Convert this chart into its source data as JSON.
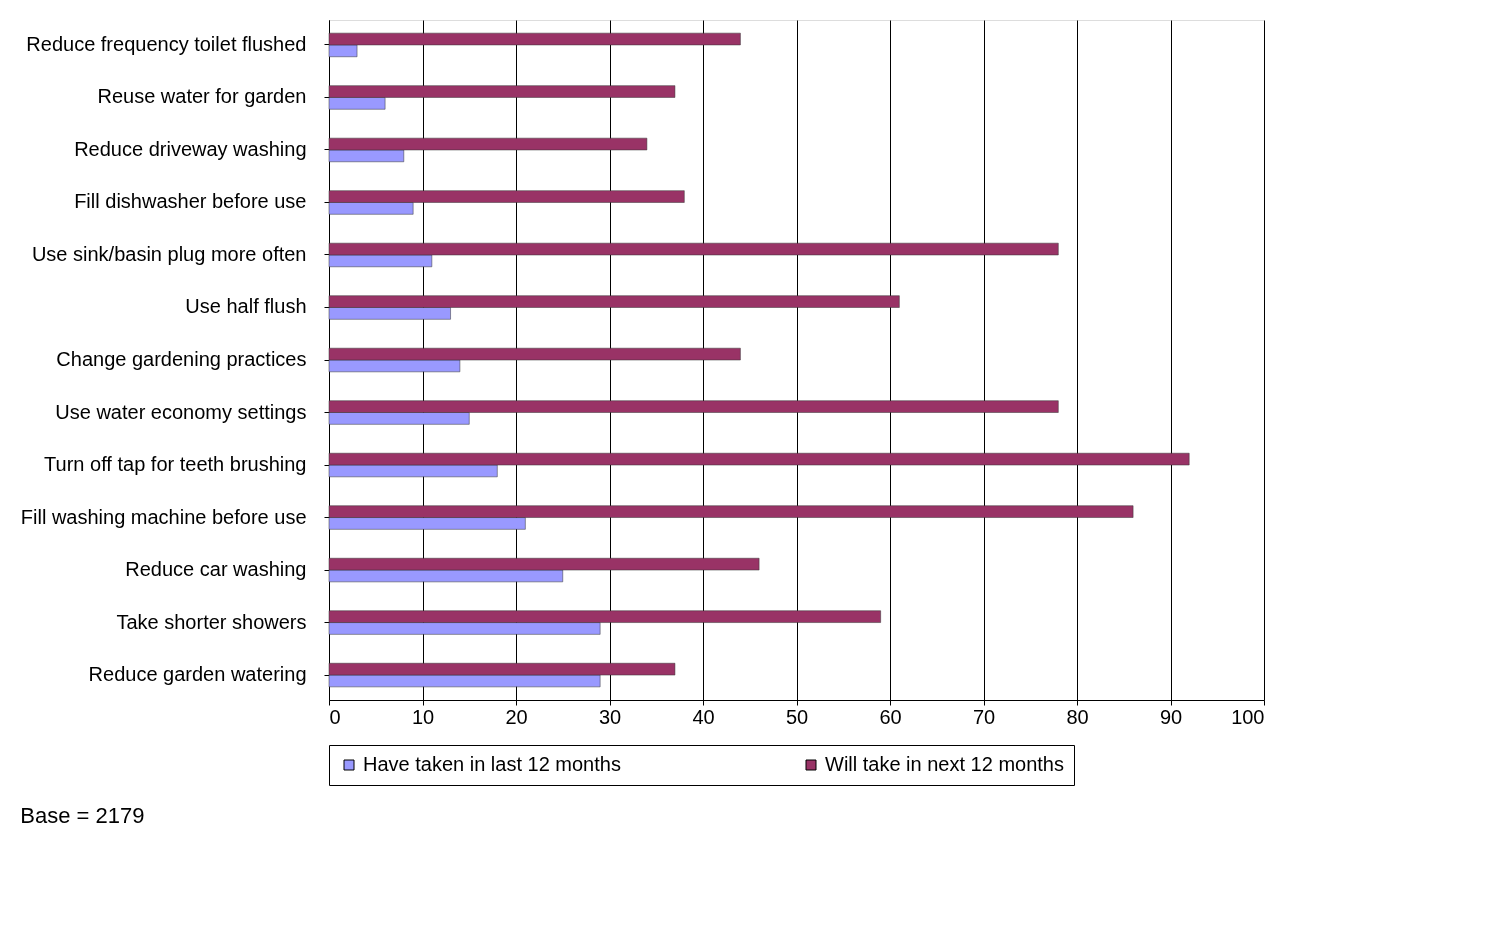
{
  "chart_data": {
    "type": "bar",
    "orientation": "horizontal",
    "categories": [
      "Reduce frequency toilet flushed",
      "Reuse water for garden",
      "Reduce driveway washing",
      "Fill dishwasher before use",
      "Use sink/basin plug more often",
      "Use half flush",
      "Change gardening practices",
      "Use water economy settings",
      "Turn off tap for teeth brushing",
      "Fill washing machine before use",
      "Reduce car washing",
      "Take shorter showers",
      "Reduce garden watering"
    ],
    "series": [
      {
        "name": "Have taken in last 12 months",
        "color": "#9999ff",
        "values": [
          3,
          6,
          8,
          9,
          11,
          13,
          14,
          15,
          18,
          21,
          25,
          29,
          29
        ]
      },
      {
        "name": "Will take in next 12 months",
        "color": "#993366",
        "values": [
          44,
          37,
          34,
          38,
          78,
          61,
          44,
          78,
          92,
          86,
          46,
          59,
          37
        ]
      }
    ],
    "xlim": [
      0,
      100
    ],
    "xticks": [
      0,
      10,
      20,
      30,
      40,
      50,
      60,
      70,
      80,
      90,
      100
    ],
    "grid": "x",
    "legend": "bottom",
    "annotations": [
      "Base = 2179"
    ]
  }
}
